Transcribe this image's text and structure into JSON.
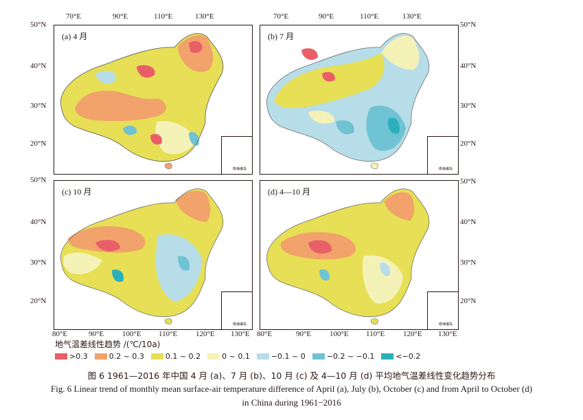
{
  "panels": [
    {
      "label": "(a) 4 月"
    },
    {
      "label": "(b) 7 月"
    },
    {
      "label": "(c) 10 月"
    },
    {
      "label": "(d) 4—10 月"
    }
  ],
  "inset_label": "南海诸岛",
  "top_lon_labels": [
    "70°E",
    "90°E",
    "110°E",
    "130°E"
  ],
  "bottom_lon_labels": [
    "80°E",
    "90°E",
    "100°E",
    "110°E",
    "120°E",
    "130°E"
  ],
  "lat_labels_top": [
    "50°N",
    "40°N",
    "30°N",
    "20°N"
  ],
  "lat_labels_bottom": [
    "50°N",
    "40°N",
    "30°N",
    "20°N"
  ],
  "legend": {
    "title": "地气温差线性趋势 /(℃/10a)",
    "items": [
      {
        "label": ">0.3",
        "color": "#e95f68"
      },
      {
        "label": "0.2 ~ 0.3",
        "color": "#f1a36b"
      },
      {
        "label": "0.1 ~ 0.2",
        "color": "#e7df55"
      },
      {
        "label": "0 ~ 0.1",
        "color": "#f5f2b8"
      },
      {
        "label": "−0.1 ~ 0",
        "color": "#b7dde8"
      },
      {
        "label": "−0.2 ~ −0.1",
        "color": "#70c3d3"
      },
      {
        "label": "<−0.2",
        "color": "#2bb0bb"
      }
    ]
  },
  "caption": {
    "zh": "图 6  1961—2016 年中国 4 月 (a)、7 月 (b)、10 月 (c) 及 4—10 月 (d) 平均地气温差线性变化趋势分布",
    "en1": "Fig. 6  Linear trend of monthly mean surface-air temperature difference of April (a), July (b), October (c) and from April to October (d)",
    "en2": "in China during 1961−2016"
  }
}
